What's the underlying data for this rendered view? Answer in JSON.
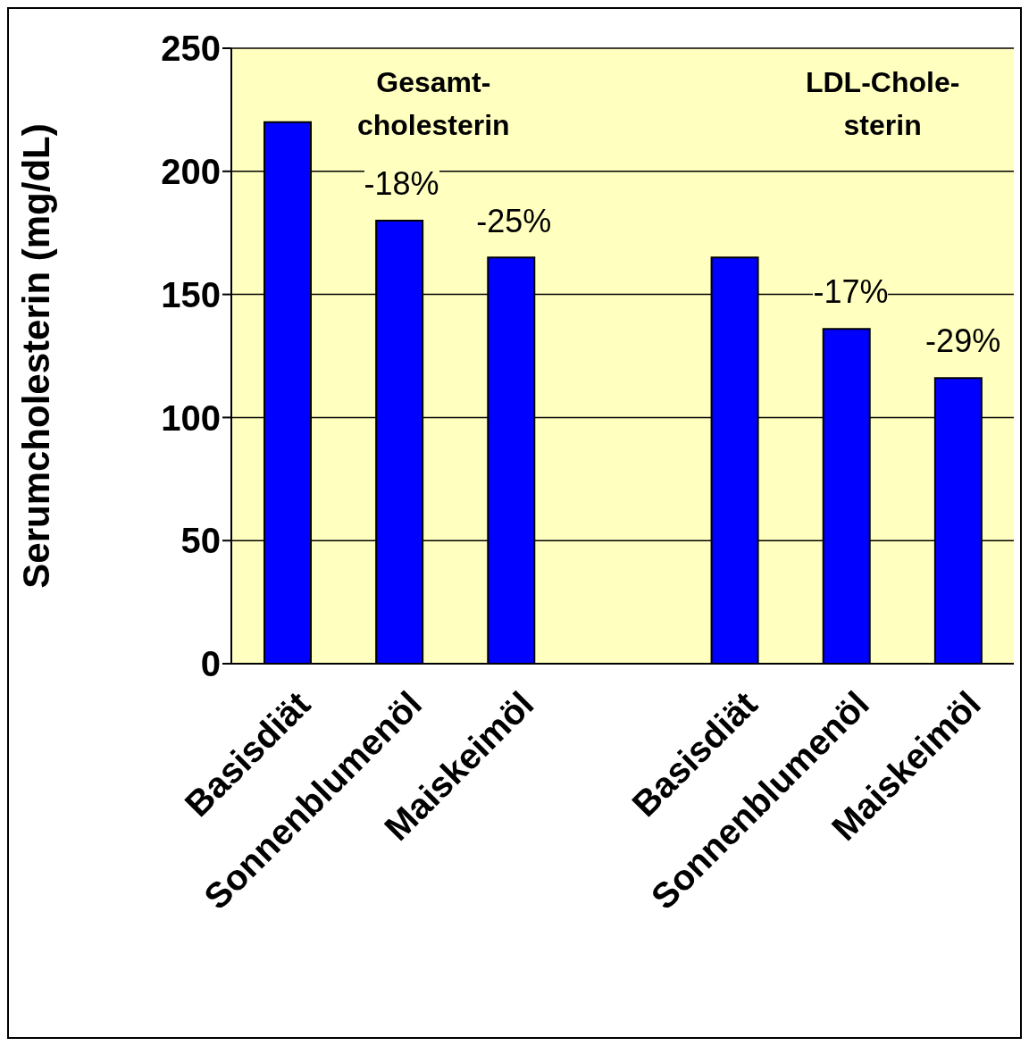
{
  "chart_data": {
    "type": "bar",
    "ylabel": "Serumcholesterin (mg/dL)",
    "categories": [
      "Basisdiät",
      "Sonnenblumenöl",
      "Maiskeimöl",
      null,
      "Basisdiät",
      "Sonnenblumenöl",
      "Maiskeimöl"
    ],
    "values": [
      220,
      180,
      165,
      null,
      165,
      136,
      116
    ],
    "color": "#0000ff",
    "ylim": [
      0,
      250
    ],
    "yticks": [
      0,
      50,
      100,
      150,
      200,
      250
    ],
    "grid": "y",
    "annotations": [
      "Gesamt-\ncholesterin",
      "LDL-Chole-\nsterin",
      "-18%",
      "-25%",
      "-17%",
      "-29%"
    ]
  }
}
